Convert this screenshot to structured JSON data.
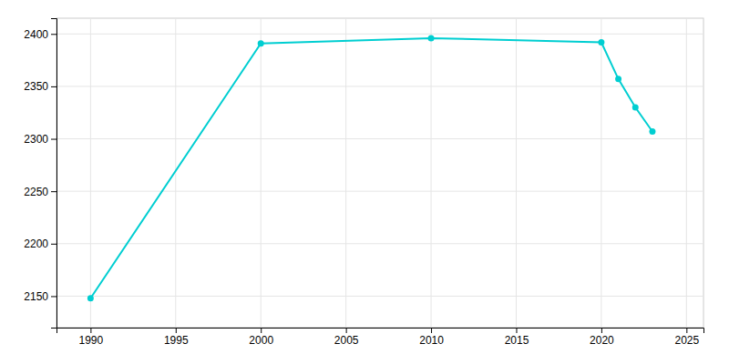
{
  "chart_data": {
    "type": "line",
    "x": [
      1990,
      2000,
      2010,
      2020,
      2021,
      2022,
      2023
    ],
    "values": [
      2148,
      2391,
      2396,
      2392,
      2357,
      2330,
      2307
    ],
    "color": "#00CED1",
    "marker": "circle",
    "xlim": [
      1988,
      2026
    ],
    "ylim": [
      2120,
      2415
    ],
    "xticks": [
      1990,
      1995,
      2000,
      2005,
      2010,
      2015,
      2020,
      2025
    ],
    "yticks": [
      2150,
      2200,
      2250,
      2300,
      2350,
      2400
    ],
    "grid": true
  }
}
